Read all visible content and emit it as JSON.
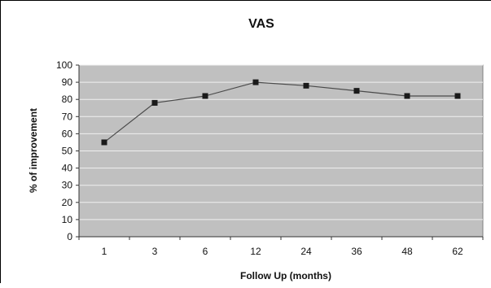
{
  "chart_data": {
    "type": "line",
    "title": "VAS",
    "xlabel": "Follow Up (months)",
    "ylabel": "% of improvement",
    "categories": [
      "1",
      "3",
      "6",
      "12",
      "24",
      "36",
      "48",
      "62"
    ],
    "series": [
      {
        "values": [
          55,
          78,
          82,
          90,
          88,
          85,
          82,
          82
        ]
      }
    ],
    "ylim": [
      0,
      100
    ],
    "ytick_step": 10,
    "grid": true,
    "legend": "none",
    "colors": {
      "plot_bg": "#c0c0c0",
      "line": "#4a4a4a",
      "marker": "#1a1a1a",
      "grid": "#f0f0f0"
    }
  }
}
